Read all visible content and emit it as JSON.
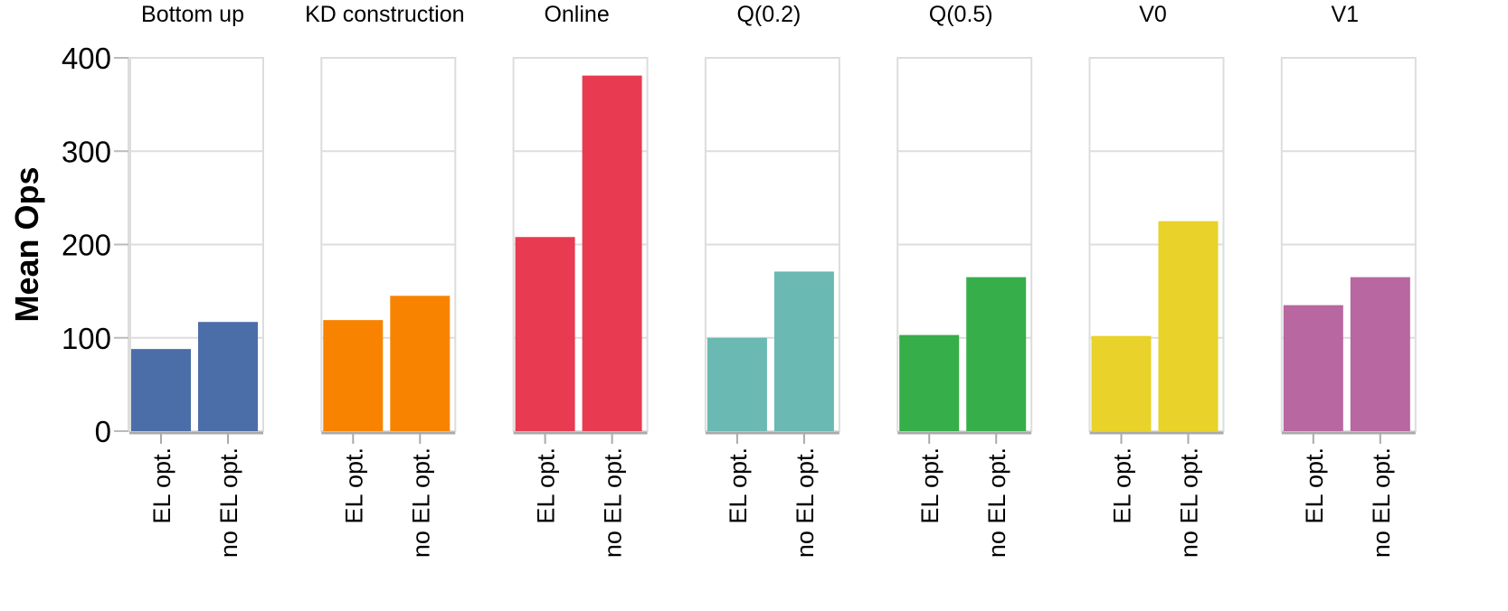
{
  "chart_data": {
    "type": "bar",
    "ylabel": "Mean Ops",
    "ylim": [
      0,
      400
    ],
    "yticks": [
      0,
      100,
      200,
      300,
      400
    ],
    "grid": true,
    "categories": [
      "EL opt.",
      "no EL opt."
    ],
    "facets": [
      {
        "title": "Bottom up",
        "color": "#4c6ea8",
        "values": [
          88,
          117
        ]
      },
      {
        "title": "KD construction",
        "color": "#f88300",
        "values": [
          119,
          145
        ]
      },
      {
        "title": "Online",
        "color": "#e83b51",
        "values": [
          208,
          381
        ]
      },
      {
        "title": "Q(0.2)",
        "color": "#6ab9b2",
        "values": [
          100,
          171
        ]
      },
      {
        "title": "Q(0.5)",
        "color": "#36ae4a",
        "values": [
          103,
          165
        ]
      },
      {
        "title": "V0",
        "color": "#e9d22a",
        "values": [
          102,
          225
        ]
      },
      {
        "title": "V1",
        "color": "#b867a0",
        "values": [
          135,
          165
        ]
      }
    ]
  }
}
